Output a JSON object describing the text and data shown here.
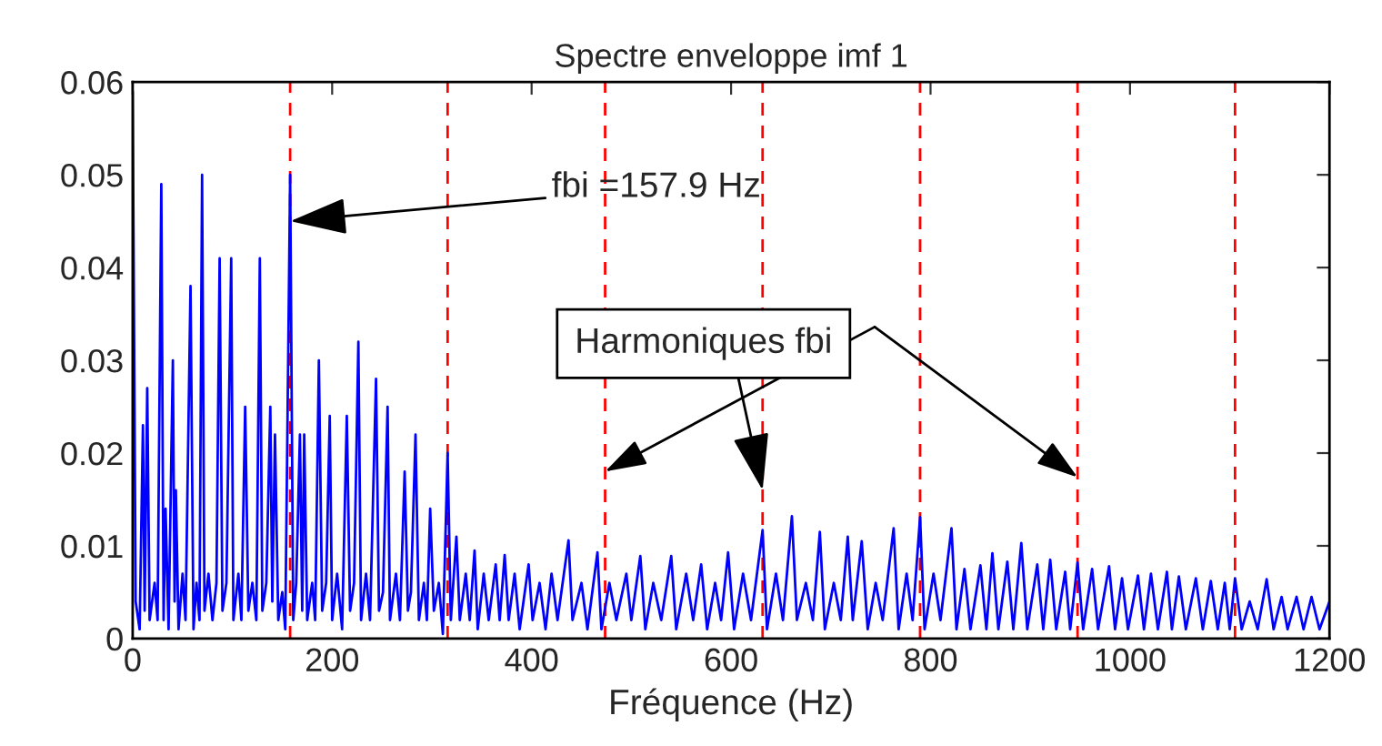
{
  "chart_data": {
    "type": "line",
    "title": "Spectre enveloppe imf 1",
    "xlabel": "Fréquence (Hz)",
    "xlim": [
      0,
      1200
    ],
    "xticks": [
      0,
      200,
      400,
      600,
      800,
      1000,
      1200
    ],
    "ylim": [
      0,
      0.06
    ],
    "yticks": [
      0,
      0.01,
      0.02,
      0.03,
      0.04,
      0.05,
      0.06
    ],
    "grid": false,
    "marker": "none",
    "line_style": "solid",
    "series": [
      {
        "color": "#0000ff",
        "x": [
          0,
          3,
          7,
          10.3,
          12,
          14.6,
          17,
          22,
          25,
          28.7,
          31,
          33,
          36,
          40.3,
          42,
          43.3,
          46,
          50,
          53,
          58,
          61,
          64,
          67,
          69.6,
          72,
          76,
          80,
          84,
          87.2,
          90,
          94,
          98.8,
          101,
          106,
          109,
          112.8,
          116,
          120,
          124,
          127.5,
          130,
          134,
          138,
          140,
          142.7,
          146,
          150,
          153,
          157.9,
          161,
          164,
          167.7,
          170,
          172,
          175,
          180,
          183,
          186.7,
          190,
          194,
          197.6,
          200,
          205,
          210,
          214.7,
          218,
          222,
          226.3,
          229,
          234,
          238,
          244,
          247,
          251,
          255.6,
          258,
          264,
          268,
          272.7,
          276,
          279,
          283.6,
          287,
          292,
          295,
          298.3,
          302,
          307,
          311,
          315.8,
          319,
          324.6,
          328,
          334,
          338,
          342.8,
          346,
          352,
          357,
          364,
          368,
          373,
          377,
          383,
          388,
          397,
          401,
          408,
          414,
          420,
          426,
          437,
          441,
          450,
          456,
          466,
          470,
          478,
          485,
          495,
          500,
          509,
          514,
          522,
          530,
          540,
          545,
          555,
          562,
          570,
          576,
          584,
          590,
          597,
          603,
          612,
          620,
          631.6,
          636,
          645,
          652,
          661,
          666,
          675,
          682,
          689,
          694,
          703,
          710,
          717,
          722,
          731,
          737,
          745,
          752,
          763,
          768,
          776,
          782,
          789.5,
          794,
          803,
          810,
          821,
          826,
          834,
          840,
          850,
          856,
          862,
          868,
          877,
          883,
          891,
          897,
          907,
          913,
          920,
          926,
          935,
          940,
          947.4,
          953,
          962,
          968,
          979,
          985,
          992,
          998,
          1008,
          1014,
          1021,
          1028,
          1037,
          1042,
          1049,
          1056,
          1066,
          1073,
          1081,
          1088,
          1095,
          1100,
          1105.3,
          1112,
          1120,
          1128,
          1137,
          1144,
          1152,
          1158,
          1167,
          1174,
          1182,
          1190,
          1200
        ],
        "values": [
          0.059,
          0.004,
          0.001,
          0.023,
          0.003,
          0.027,
          0.002,
          0.006,
          0.002,
          0.049,
          0.002,
          0.014,
          0.001,
          0.03,
          0.004,
          0.016,
          0.001,
          0.007,
          0.002,
          0.038,
          0.001,
          0.006,
          0.002,
          0.05,
          0.003,
          0.007,
          0.002,
          0.006,
          0.041,
          0.003,
          0.006,
          0.041,
          0.002,
          0.007,
          0.002,
          0.025,
          0.003,
          0.006,
          0.002,
          0.041,
          0.003,
          0.006,
          0.025,
          0.004,
          0.022,
          0.002,
          0.005,
          0.001,
          0.05,
          0.002,
          0.006,
          0.022,
          0.003,
          0.022,
          0.002,
          0.006,
          0.002,
          0.03,
          0.003,
          0.006,
          0.024,
          0.002,
          0.007,
          0.001,
          0.024,
          0.003,
          0.006,
          0.032,
          0.002,
          0.007,
          0.002,
          0.028,
          0.003,
          0.005,
          0.025,
          0.002,
          0.007,
          0.002,
          0.018,
          0.003,
          0.005,
          0.022,
          0.002,
          0.006,
          0.002,
          0.014,
          0.003,
          0.006,
          0.0005,
          0.02,
          0.002,
          0.011,
          0.002,
          0.007,
          0.002,
          0.0095,
          0.001,
          0.007,
          0.002,
          0.008,
          0.002,
          0.009,
          0.002,
          0.007,
          0.001,
          0.008,
          0.002,
          0.006,
          0.001,
          0.007,
          0.002,
          0.0106,
          0.002,
          0.006,
          0.001,
          0.0093,
          0.001,
          0.006,
          0.002,
          0.007,
          0.002,
          0.0089,
          0.001,
          0.006,
          0.002,
          0.0089,
          0.001,
          0.007,
          0.002,
          0.008,
          0.001,
          0.006,
          0.002,
          0.0093,
          0.001,
          0.007,
          0.002,
          0.0117,
          0.001,
          0.007,
          0.002,
          0.0132,
          0.002,
          0.006,
          0.002,
          0.0115,
          0.001,
          0.006,
          0.002,
          0.011,
          0.002,
          0.0105,
          0.001,
          0.006,
          0.002,
          0.0119,
          0.001,
          0.007,
          0.002,
          0.0131,
          0.001,
          0.007,
          0.002,
          0.0119,
          0.001,
          0.0075,
          0.001,
          0.0079,
          0.001,
          0.0092,
          0.001,
          0.0083,
          0.001,
          0.0103,
          0.001,
          0.008,
          0.001,
          0.0085,
          0.001,
          0.0072,
          0.001,
          0.0082,
          0.001,
          0.0075,
          0.001,
          0.0078,
          0.001,
          0.0065,
          0.001,
          0.0068,
          0.001,
          0.007,
          0.001,
          0.0072,
          0.001,
          0.0067,
          0.001,
          0.0065,
          0.001,
          0.0062,
          0.001,
          0.006,
          0.001,
          0.0065,
          0.001,
          0.004,
          0.001,
          0.0064,
          0.001,
          0.0045,
          0.001,
          0.0045,
          0.001,
          0.0045,
          0.001,
          0.004
        ]
      }
    ],
    "ref_lines": [
      {
        "axis": "x",
        "value": 157.9,
        "color": "#ff0000",
        "line_style": "dashed"
      },
      {
        "axis": "x",
        "value": 315.8,
        "color": "#ff0000",
        "line_style": "dashed"
      },
      {
        "axis": "x",
        "value": 473.7,
        "color": "#ff0000",
        "line_style": "dashed"
      },
      {
        "axis": "x",
        "value": 631.6,
        "color": "#ff0000",
        "line_style": "dashed"
      },
      {
        "axis": "x",
        "value": 789.5,
        "color": "#ff0000",
        "line_style": "dashed"
      },
      {
        "axis": "x",
        "value": 947.4,
        "color": "#ff0000",
        "line_style": "dashed"
      },
      {
        "axis": "x",
        "value": 1105.3,
        "color": "#ff0000",
        "line_style": "dashed"
      }
    ],
    "annotations": [
      {
        "text": "fbi =157.9 Hz",
        "x": 157.9,
        "y": 0.045
      },
      {
        "text": "Harmoniques fbi",
        "x": 631.6,
        "y": 0.016
      }
    ]
  }
}
